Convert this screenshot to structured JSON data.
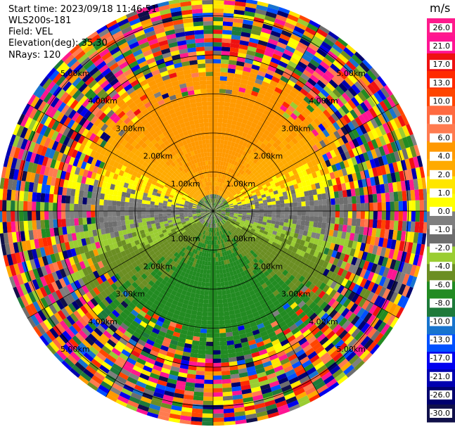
{
  "header": {
    "start_time": "Start time: 2023/09/18 11:46:51",
    "instrument": "WLS200s-181",
    "field": "Field: VEL",
    "elevation": "Elevation(deg): 35.30",
    "nrays": "NRays: 120"
  },
  "colorbar": {
    "unit": "m/s",
    "ticks": [
      "26.0",
      "21.0",
      "17.0",
      "13.0",
      "10.0",
      "8.0",
      "6.0",
      "4.0",
      "2.0",
      "1.0",
      "0.0",
      "-1.0",
      "-2.0",
      "-4.0",
      "-6.0",
      "-8.0",
      "-10.0",
      "-13.0",
      "-17.0",
      "-21.0",
      "-26.0",
      "-30.0"
    ],
    "colors": [
      "#ff1a8c",
      "#ff1493",
      "#ee1111",
      "#ff2a00",
      "#ff4500",
      "#ff6a40",
      "#ff7b50",
      "#ff9900",
      "#ffaa00",
      "#ffe600",
      "#ffff00",
      "#7f7f7f",
      "#6e6e6e",
      "#9acd32",
      "#6b8e23",
      "#228b22",
      "#1e7a3a",
      "#1874cd",
      "#0050ff",
      "#0000ee",
      "#0000b0",
      "#00006e",
      "#10104a"
    ]
  },
  "chart_data": {
    "type": "heatmap",
    "projection": "polar-ppi",
    "field": "VEL",
    "units": "m/s",
    "n_rays": 120,
    "elevation_deg": 35.3,
    "range_rings_km": [
      "1.00km",
      "2.00km",
      "3.00km",
      "4.00km",
      "5.00km"
    ],
    "description_of_pattern": {
      "north_sector": "positive 1 to 6 m/s (yellow/orange)",
      "south_sector": "negative -1 to -6 m/s (olive/green)",
      "near_zero_band": "0.0 m/s grey band crossing east-west",
      "outer_ranges": "noisy random values across full scale"
    }
  }
}
